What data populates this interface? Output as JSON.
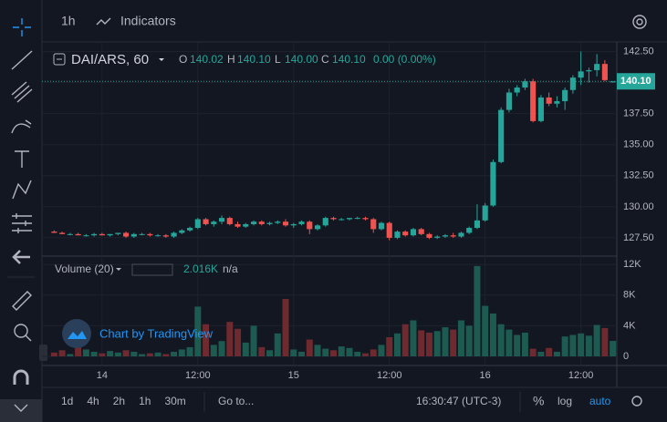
{
  "toolbar": {
    "interval": "1h",
    "indicators": "Indicators"
  },
  "legend": {
    "symbol": "DAI/ARS, 60",
    "o_label": "O",
    "o": "140.02",
    "h_label": "H",
    "h": "140.10",
    "l_label": "L",
    "l": "140.00",
    "c_label": "C",
    "c": "140.10",
    "change": "0.00 (0.00%)",
    "volume_title": "Volume (20)",
    "volume": "2.016K",
    "volume_extra": "n/a"
  },
  "watermark": "Chart by TradingView",
  "bottom_bar": {
    "ranges": [
      "1d",
      "4h",
      "2h",
      "1h",
      "30m"
    ],
    "goto": "Go to...",
    "clock": "16:30:47 (UTC-3)",
    "percent": "%",
    "log": "log",
    "auto": "auto"
  },
  "chart_data": {
    "type": "candlestick",
    "up_color": "#26a69a",
    "down_color": "#ef5350",
    "volume_up_color": "#1d5b51",
    "volume_down_color": "#6e2a2e",
    "last_price": {
      "value": 140.1,
      "label": "140.10"
    },
    "categories": [
      null,
      null,
      null,
      null,
      null,
      null,
      "14",
      null,
      null,
      null,
      null,
      null,
      null,
      null,
      null,
      null,
      null,
      null,
      "12:00",
      null,
      null,
      null,
      null,
      null,
      null,
      null,
      null,
      null,
      null,
      null,
      "15",
      null,
      null,
      null,
      null,
      null,
      null,
      null,
      null,
      null,
      null,
      null,
      "12:00",
      null,
      null,
      null,
      null,
      null,
      null,
      null,
      null,
      null,
      null,
      null,
      "16",
      null,
      null,
      null,
      null,
      null,
      null,
      null,
      null,
      null,
      null,
      null,
      "12:00",
      null,
      null,
      null,
      null
    ],
    "open": [
      128.0,
      127.9,
      127.8,
      127.8,
      127.7,
      127.7,
      127.8,
      127.7,
      127.8,
      127.9,
      127.6,
      127.8,
      127.8,
      127.7,
      127.7,
      127.6,
      127.9,
      128.1,
      128.3,
      129.0,
      128.6,
      128.8,
      129.1,
      128.6,
      128.4,
      128.6,
      128.8,
      128.6,
      128.7,
      128.8,
      128.5,
      128.6,
      128.8,
      128.2,
      128.5,
      129.1,
      129.0,
      129.0,
      129.1,
      129.1,
      129.0,
      128.2,
      128.7,
      127.5,
      128.0,
      127.7,
      128.2,
      127.8,
      127.5,
      127.6,
      127.7,
      127.6,
      127.9,
      128.3,
      128.9,
      130.1,
      133.6,
      137.8,
      139.2,
      139.6,
      140.1,
      136.9,
      138.8,
      138.3,
      138.5,
      139.4,
      140.4,
      140.9,
      141.0,
      141.5,
      140.02
    ],
    "high": [
      128.1,
      128.0,
      127.9,
      127.9,
      127.8,
      127.9,
      127.9,
      127.8,
      127.9,
      128.0,
      127.9,
      127.9,
      127.9,
      127.8,
      127.8,
      128.0,
      128.2,
      128.4,
      129.1,
      129.1,
      128.9,
      129.3,
      129.2,
      128.8,
      128.7,
      128.9,
      128.9,
      128.8,
      128.9,
      129.0,
      128.7,
      128.9,
      128.9,
      128.6,
      129.2,
      129.2,
      129.1,
      129.1,
      129.2,
      129.2,
      129.1,
      128.8,
      128.8,
      128.1,
      128.1,
      128.3,
      128.3,
      127.9,
      127.7,
      127.8,
      127.9,
      128.0,
      128.4,
      130.2,
      130.3,
      133.8,
      138.0,
      139.5,
      139.8,
      140.3,
      140.3,
      139.0,
      139.2,
      138.9,
      139.6,
      140.6,
      142.5,
      141.2,
      142.3,
      141.8,
      140.1
    ],
    "low": [
      127.9,
      127.8,
      127.7,
      127.7,
      127.6,
      127.6,
      127.7,
      127.6,
      127.7,
      127.5,
      127.5,
      127.7,
      127.6,
      127.6,
      127.5,
      127.5,
      127.8,
      128.0,
      128.2,
      128.5,
      128.4,
      128.6,
      128.5,
      128.3,
      128.3,
      128.5,
      128.5,
      128.5,
      128.6,
      128.4,
      128.3,
      128.5,
      127.8,
      128.1,
      128.4,
      128.9,
      128.9,
      128.9,
      129.0,
      128.9,
      127.9,
      128.1,
      127.3,
      127.4,
      127.6,
      127.6,
      127.7,
      127.4,
      127.4,
      127.5,
      127.5,
      127.5,
      127.8,
      128.2,
      128.8,
      130.0,
      133.5,
      137.6,
      138.9,
      139.4,
      136.8,
      136.8,
      138.1,
      138.0,
      137.8,
      139.1,
      139.8,
      140.0,
      140.5,
      140.1,
      140.0
    ],
    "close": [
      127.9,
      127.8,
      127.8,
      127.7,
      127.7,
      127.8,
      127.7,
      127.8,
      127.9,
      127.6,
      127.8,
      127.8,
      127.7,
      127.7,
      127.6,
      127.9,
      128.1,
      128.3,
      129.0,
      128.6,
      128.8,
      129.1,
      128.6,
      128.4,
      128.6,
      128.8,
      128.6,
      128.7,
      128.8,
      128.5,
      128.6,
      128.8,
      128.2,
      128.5,
      129.1,
      129.0,
      129.0,
      129.1,
      129.1,
      129.0,
      128.2,
      128.7,
      127.5,
      128.0,
      127.7,
      128.2,
      127.8,
      127.5,
      127.6,
      127.7,
      127.6,
      127.9,
      128.3,
      128.9,
      130.1,
      133.6,
      137.8,
      139.2,
      139.6,
      140.1,
      136.9,
      138.8,
      138.3,
      138.5,
      139.4,
      140.4,
      140.9,
      141.0,
      141.5,
      140.2,
      140.1
    ],
    "volume": [
      500,
      800,
      300,
      1200,
      900,
      600,
      400,
      700,
      500,
      800,
      600,
      300,
      400,
      500,
      300,
      600,
      900,
      1200,
      6500,
      4200,
      1500,
      2000,
      4500,
      3600,
      1800,
      4000,
      1200,
      800,
      3000,
      7500,
      900,
      600,
      2200,
      1500,
      1000,
      800,
      1300,
      1100,
      600,
      400,
      900,
      1500,
      2500,
      3000,
      4200,
      4700,
      3400,
      3100,
      3300,
      3800,
      3500,
      4700,
      4000,
      11800,
      6600,
      5600,
      4200,
      3500,
      2800,
      3100,
      1000,
      600,
      1100,
      600,
      2600,
      2800,
      3000,
      2700,
      4100,
      3700,
      2016
    ],
    "ylim": [
      126.1,
      143.2
    ],
    "yticks": [
      {
        "value": 127.5,
        "label": "127.50"
      },
      {
        "value": 130,
        "label": "130.00"
      },
      {
        "value": 132.5,
        "label": "132.50"
      },
      {
        "value": 135,
        "label": "135.00"
      },
      {
        "value": 137.5,
        "label": "137.50"
      },
      {
        "value": 140,
        "label": "140.00"
      },
      {
        "value": 142.5,
        "label": "142.50"
      }
    ],
    "volume_ylim": [
      0,
      12500
    ],
    "volume_ticks": [
      0,
      {
        "value": 4000,
        "label": "4K"
      },
      {
        "value": 8000,
        "label": "8K"
      },
      {
        "value": 12000,
        "label": "12K"
      }
    ]
  }
}
